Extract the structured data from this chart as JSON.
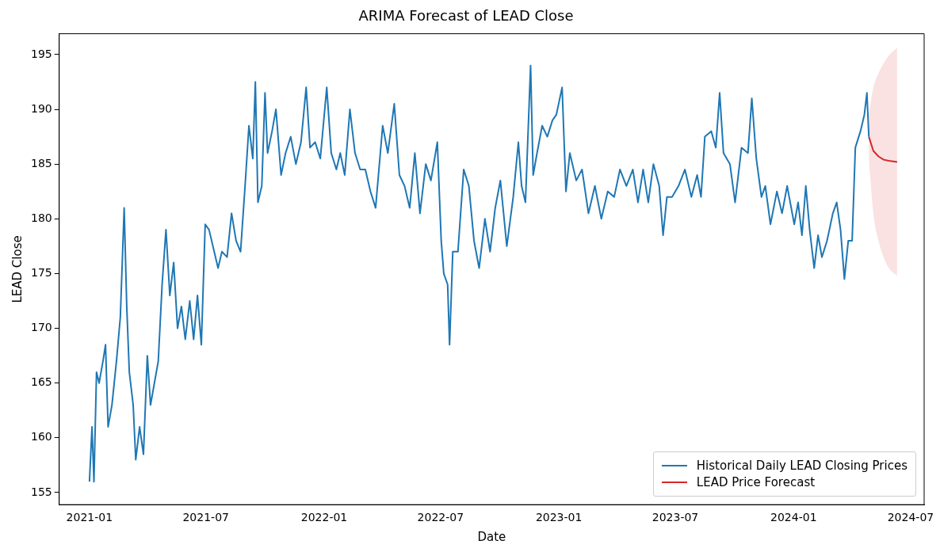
{
  "chart_data": {
    "type": "line",
    "title": "ARIMA Forecast of LEAD Close",
    "xlabel": "Date",
    "ylabel": "LEAD Close",
    "xlim": [
      "2020-11-15",
      "2024-07-22"
    ],
    "ylim": [
      153.9,
      196.9
    ],
    "xticks": [
      {
        "value": "2021-01-01",
        "label": "2021-01"
      },
      {
        "value": "2021-07-01",
        "label": "2021-07"
      },
      {
        "value": "2022-01-01",
        "label": "2022-01"
      },
      {
        "value": "2022-07-01",
        "label": "2022-07"
      },
      {
        "value": "2023-01-01",
        "label": "2023-01"
      },
      {
        "value": "2023-07-01",
        "label": "2023-07"
      },
      {
        "value": "2024-01-01",
        "label": "2024-01"
      },
      {
        "value": "2024-07-01",
        "label": "2024-07"
      }
    ],
    "yticks": [
      155,
      160,
      165,
      170,
      175,
      180,
      185,
      190,
      195
    ],
    "grid": false,
    "legend": "bottom right",
    "series": [
      {
        "name": "Historical Daily LEAD Closing Prices",
        "color": "#1f77b4",
        "x": [
          "2021-01-01",
          "2021-01-05",
          "2021-01-08",
          "2021-01-12",
          "2021-01-16",
          "2021-01-22",
          "2021-01-26",
          "2021-01-30",
          "2021-02-05",
          "2021-02-12",
          "2021-02-18",
          "2021-02-24",
          "2021-02-28",
          "2021-03-04",
          "2021-03-10",
          "2021-03-14",
          "2021-03-20",
          "2021-03-26",
          "2021-04-01",
          "2021-04-06",
          "2021-04-12",
          "2021-04-18",
          "2021-04-24",
          "2021-04-30",
          "2021-05-06",
          "2021-05-12",
          "2021-05-18",
          "2021-05-24",
          "2021-05-30",
          "2021-06-06",
          "2021-06-12",
          "2021-06-18",
          "2021-06-24",
          "2021-06-30",
          "2021-07-06",
          "2021-07-14",
          "2021-07-20",
          "2021-07-26",
          "2021-08-03",
          "2021-08-10",
          "2021-08-17",
          "2021-08-24",
          "2021-08-31",
          "2021-09-06",
          "2021-09-12",
          "2021-09-16",
          "2021-09-20",
          "2021-09-26",
          "2021-10-01",
          "2021-10-05",
          "2021-10-12",
          "2021-10-18",
          "2021-10-26",
          "2021-11-02",
          "2021-11-10",
          "2021-11-18",
          "2021-11-26",
          "2021-12-04",
          "2021-12-10",
          "2021-12-18",
          "2021-12-26",
          "2022-01-05",
          "2022-01-12",
          "2022-01-20",
          "2022-01-26",
          "2022-02-02",
          "2022-02-10",
          "2022-02-18",
          "2022-02-26",
          "2022-03-06",
          "2022-03-14",
          "2022-03-22",
          "2022-04-02",
          "2022-04-10",
          "2022-04-20",
          "2022-04-28",
          "2022-05-06",
          "2022-05-14",
          "2022-05-22",
          "2022-05-30",
          "2022-06-08",
          "2022-06-16",
          "2022-06-26",
          "2022-07-02",
          "2022-07-06",
          "2022-07-12",
          "2022-07-15",
          "2022-07-20",
          "2022-07-28",
          "2022-08-06",
          "2022-08-14",
          "2022-08-22",
          "2022-08-30",
          "2022-09-08",
          "2022-09-16",
          "2022-09-24",
          "2022-10-02",
          "2022-10-12",
          "2022-10-22",
          "2022-10-30",
          "2022-11-04",
          "2022-11-10",
          "2022-11-18",
          "2022-11-22",
          "2022-11-28",
          "2022-12-06",
          "2022-12-14",
          "2022-12-22",
          "2022-12-28",
          "2023-01-06",
          "2023-01-12",
          "2023-01-18",
          "2023-01-28",
          "2023-02-06",
          "2023-02-16",
          "2023-02-26",
          "2023-03-08",
          "2023-03-18",
          "2023-03-28",
          "2023-04-06",
          "2023-04-16",
          "2023-04-26",
          "2023-05-04",
          "2023-05-12",
          "2023-05-20",
          "2023-05-28",
          "2023-06-06",
          "2023-06-12",
          "2023-06-18",
          "2023-06-26",
          "2023-07-06",
          "2023-07-16",
          "2023-07-26",
          "2023-08-04",
          "2023-08-10",
          "2023-08-16",
          "2023-08-26",
          "2023-09-02",
          "2023-09-08",
          "2023-09-14",
          "2023-09-24",
          "2023-10-02",
          "2023-10-12",
          "2023-10-22",
          "2023-10-28",
          "2023-11-04",
          "2023-11-12",
          "2023-11-18",
          "2023-11-26",
          "2023-12-06",
          "2023-12-14",
          "2023-12-22",
          "2024-01-02",
          "2024-01-08",
          "2024-01-14",
          "2024-01-20",
          "2024-01-26",
          "2024-02-02",
          "2024-02-08",
          "2024-02-14",
          "2024-02-22",
          "2024-03-02",
          "2024-03-08",
          "2024-03-14",
          "2024-03-20",
          "2024-03-26",
          "2024-04-01",
          "2024-04-06",
          "2024-04-14",
          "2024-04-20",
          "2024-04-24",
          "2024-04-27"
        ],
        "values": [
          156,
          161,
          156,
          166,
          165,
          167,
          168.5,
          161,
          163,
          167,
          171,
          181,
          172,
          166,
          163,
          158,
          161,
          158.5,
          167.5,
          163,
          165,
          167,
          174,
          179,
          173,
          176,
          170,
          172,
          169,
          172.5,
          169,
          173,
          168.5,
          179.5,
          179,
          177,
          175.5,
          177,
          176.5,
          180.5,
          178,
          177,
          183,
          188.5,
          185.5,
          192.5,
          181.5,
          183,
          191.5,
          186,
          188,
          190,
          184,
          186,
          187.5,
          185,
          187,
          192,
          186.5,
          187,
          185.5,
          192,
          186,
          184.5,
          186,
          184,
          190,
          186,
          184.5,
          184.5,
          182.5,
          181,
          188.5,
          186,
          190.5,
          184,
          183,
          181,
          186,
          180.5,
          185,
          183.5,
          187,
          178,
          175,
          174,
          168.5,
          177,
          177,
          184.5,
          183,
          178,
          175.5,
          180,
          177,
          181,
          183.5,
          177.5,
          182,
          187,
          183,
          181.5,
          194,
          184,
          186,
          188.5,
          187.5,
          189,
          189.5,
          192,
          182.5,
          186,
          183.5,
          184.5,
          180.5,
          183,
          180,
          182.5,
          182,
          184.5,
          183,
          184.5,
          181.5,
          184.5,
          181.5,
          185,
          183,
          178.5,
          182,
          182,
          183,
          184.5,
          182,
          184,
          182,
          187.5,
          188,
          186.5,
          191.5,
          186,
          185,
          181.5,
          186.5,
          186,
          191,
          185.5,
          182,
          183,
          179.5,
          182.5,
          180.5,
          183,
          179.5,
          181.5,
          178.5,
          183,
          179,
          175.5,
          178.5,
          176.5,
          178,
          180.5,
          181.5,
          179,
          174.5,
          178,
          178,
          186.5,
          188,
          189.5,
          191.5,
          187.5
        ]
      },
      {
        "name": "LEAD Price Forecast",
        "color": "#d62728",
        "x": [
          "2024-04-27",
          "2024-05-04",
          "2024-05-12",
          "2024-05-20",
          "2024-05-28",
          "2024-06-10"
        ],
        "values": [
          187.5,
          186.2,
          185.7,
          185.4,
          185.3,
          185.2
        ],
        "lower": [
          185.5,
          180.5,
          178,
          176.5,
          175.5,
          174.8
        ],
        "upper": [
          189.5,
          192,
          193.3,
          194.2,
          194.9,
          195.6
        ]
      }
    ]
  }
}
